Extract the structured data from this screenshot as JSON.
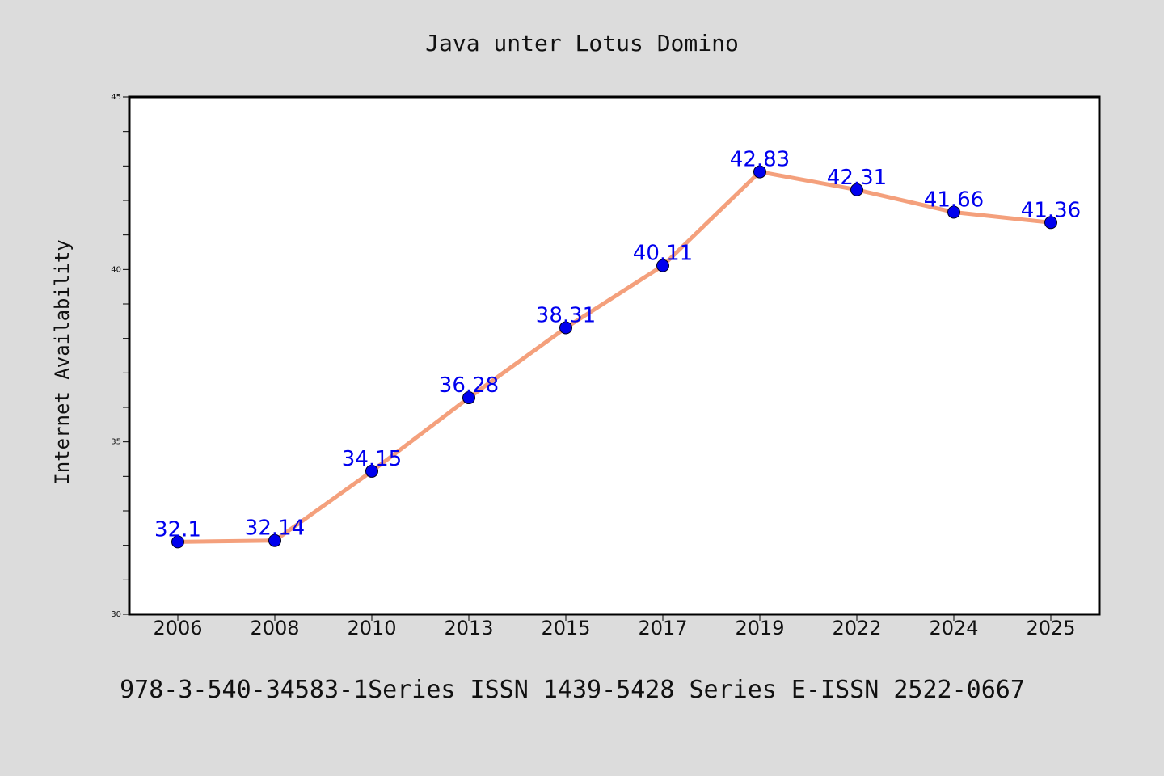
{
  "chart_data": {
    "type": "line",
    "title": "Java unter Lotus Domino",
    "xlabel": "",
    "ylabel": "Internet Availability",
    "categories": [
      "2006",
      "2008",
      "2010",
      "2013",
      "2015",
      "2017",
      "2019",
      "2022",
      "2024",
      "2025"
    ],
    "series": [
      {
        "values": [
          32.1,
          32.14,
          34.15,
          36.28,
          38.31,
          40.11,
          42.83,
          42.31,
          41.66,
          41.36
        ],
        "labels": [
          "32.1",
          "32.14",
          "34.15",
          "36.28",
          "38.31",
          "40.11",
          "42.83",
          "42.31",
          "41.66",
          "41.36"
        ],
        "line_color": "#f4a07c",
        "marker_color": "#0000ee",
        "label_color": "#0000ee"
      }
    ],
    "ylim": [
      30,
      45
    ],
    "yticks": [
      "30",
      "35",
      "40",
      "45"
    ],
    "grid": false,
    "legend": "none"
  },
  "footer": {
    "text": "978-3-540-34583-1Series ISSN 1439-5428 Series E-ISSN 2522-0667"
  },
  "colors": {
    "background": "#dcdcdc",
    "plot_background": "#ffffff",
    "axis": "#000000"
  }
}
